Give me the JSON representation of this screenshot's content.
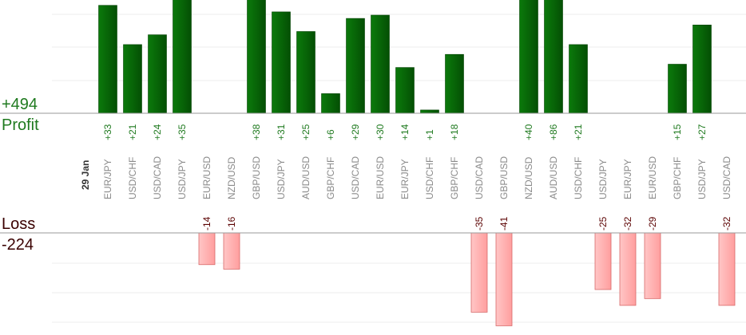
{
  "chart_data": {
    "type": "bar",
    "date_label": "29 Jan",
    "profit": {
      "label": "Profit",
      "total": "+494",
      "color": "#0a6e0a"
    },
    "loss": {
      "label": "Loss",
      "total": "-224",
      "color": "#ffb3b3"
    },
    "categories": [
      "EUR/JPY",
      "USD/CHF",
      "USD/CAD",
      "USD/JPY",
      "EUR/USD",
      "NZD/USD",
      "GBP/USD",
      "USD/JPY",
      "AUD/USD",
      "GBP/CHF",
      "USD/CAD",
      "EUR/USD",
      "EUR/JPY",
      "USD/CHF",
      "GBP/CHF",
      "USD/CAD",
      "GBP/USD",
      "NZD/USD",
      "AUD/USD",
      "USD/CHF",
      "USD/JPY",
      "EUR/JPY",
      "EUR/USD",
      "GBP/CHF",
      "USD/JPY",
      "USD/CAD"
    ],
    "values": [
      33,
      21,
      24,
      35,
      -14,
      -16,
      38,
      31,
      25,
      6,
      29,
      30,
      14,
      1,
      18,
      -35,
      -41,
      40,
      86,
      21,
      -25,
      -32,
      -29,
      15,
      27,
      -32
    ],
    "value_labels": [
      "+33",
      "+21",
      "+24",
      "+35",
      "-14",
      "-16",
      "+38",
      "+31",
      "+25",
      "+6",
      "+29",
      "+30",
      "+14",
      "+1",
      "+18",
      "-35",
      "-41",
      "+40",
      "+86",
      "+21",
      "-25",
      "-32",
      "-29",
      "+15",
      "+27",
      "-32"
    ],
    "profit_axis_visible_max": 35,
    "loss_axis_visible_max": 35,
    "grid": true
  }
}
